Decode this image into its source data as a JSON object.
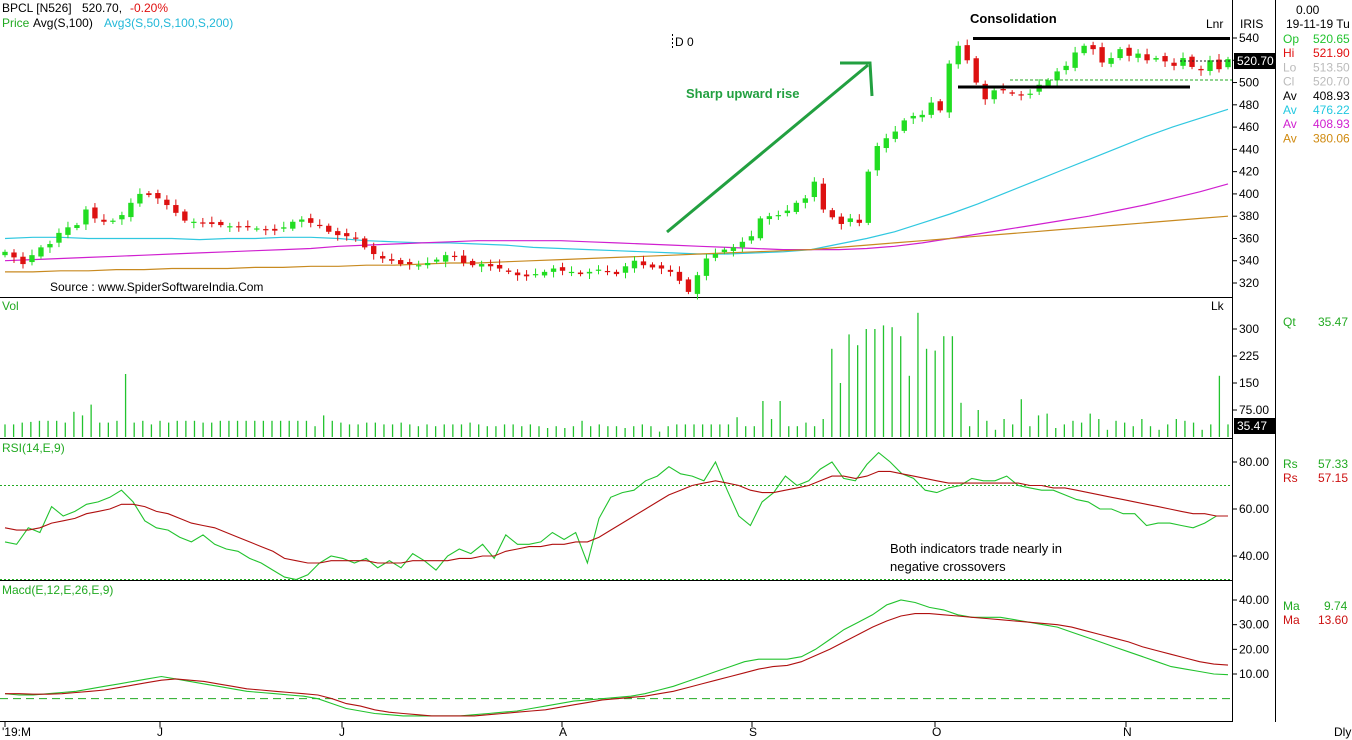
{
  "header": {
    "symbol": "BPCL [N526]",
    "price": "520.70,",
    "change": "-0.20%",
    "price_label": "Price",
    "avg_label": "Avg(S,100)",
    "avg3_label": "Avg3(S,50,S,100,S,200)",
    "d_label": "D 0",
    "lnr": "Lnr",
    "iris": "IRIS",
    "top_value": "0.00",
    "date": "19-11-19 Tu",
    "last_price_tag": "520.70"
  },
  "ohlc_panel": [
    {
      "label": "Op",
      "value": "520.65",
      "color": "#22c32e"
    },
    {
      "label": "Hi",
      "value": "521.90",
      "color": "#e01010"
    },
    {
      "label": "Lo",
      "value": "513.50",
      "color": "#bbbbbb"
    },
    {
      "label": "Cl",
      "value": "520.70",
      "color": "#bbbbbb"
    },
    {
      "label": "Av",
      "value": "408.93",
      "color": "#000000"
    },
    {
      "label": "Av",
      "value": "476.22",
      "color": "#22c8e0"
    },
    {
      "label": "Av",
      "value": "408.93",
      "color": "#d020d0"
    },
    {
      "label": "Av",
      "value": "380.06",
      "color": "#d08a10"
    }
  ],
  "annotations": {
    "source": "Source : www.SpiderSoftwareIndia.Com",
    "sharp_rise": "Sharp upward rise",
    "consolidation": "Consolidation",
    "indicators_note_1": "Both indicators trade nearly in",
    "indicators_note_2": "negative crossovers"
  },
  "volume_panel": {
    "label": "Vol",
    "unit": "Lk",
    "qt_label": "Qt",
    "qt_value": "35.47",
    "last_tag": "35.47"
  },
  "rsi_panel": {
    "label": "RSI(14,E,9)",
    "rs1_label": "Rs",
    "rs1_value": "57.33",
    "rs2_label": "Rs",
    "rs2_value": "57.15"
  },
  "macd_panel": {
    "label": "Macd(E,12,E,26,E,9)",
    "ma1_label": "Ma",
    "ma1_value": "9.74",
    "ma2_label": "Ma",
    "ma2_value": "13.60"
  },
  "x_axis": {
    "period": "Dly"
  },
  "colors": {
    "up": "#22dd22",
    "down": "#dd1111",
    "ma50": "#30c8e0",
    "ma100": "#d020d0",
    "ma200": "#c88a20",
    "rsi": "#22c32e",
    "signal": "#b01010",
    "arrow": "#22a040"
  },
  "chart_data": [
    {
      "type": "candlestick",
      "title": "BPCL [N526]",
      "price_ticks": [
        320,
        340,
        360,
        380,
        400,
        420,
        440,
        460,
        480,
        500,
        520,
        540
      ],
      "ylim": [
        310,
        548
      ],
      "x_labels": [
        "'19:M",
        "J",
        "J",
        "A",
        "S",
        "O",
        "N"
      ],
      "closes": [
        348,
        343,
        337,
        345,
        352,
        355,
        365,
        370,
        372,
        386,
        378,
        375,
        376,
        381,
        392,
        400,
        399,
        396,
        390,
        383,
        376,
        375,
        374,
        373,
        372,
        371,
        370,
        370,
        369,
        368,
        367,
        370,
        375,
        377,
        374,
        372,
        366,
        363,
        362,
        360,
        352,
        346,
        342,
        340,
        337,
        337,
        336,
        338,
        341,
        345,
        344,
        338,
        336,
        337,
        335,
        333,
        330,
        327,
        326,
        328,
        330,
        333,
        331,
        330,
        328,
        330,
        332,
        330,
        328,
        335,
        340,
        336,
        334,
        333,
        330,
        322,
        312,
        327,
        342,
        346,
        350,
        352,
        357,
        362,
        378,
        380,
        381,
        385,
        392,
        396,
        411,
        386,
        379,
        373,
        378,
        374,
        420,
        443,
        450,
        456,
        466,
        470,
        471,
        482,
        475,
        517,
        533,
        520,
        500,
        485,
        493,
        493,
        490,
        489,
        490,
        498,
        502,
        510,
        515,
        527,
        533,
        530,
        518,
        522,
        530,
        524,
        526,
        520,
        522,
        519,
        515,
        522,
        514,
        511,
        520,
        512,
        521
      ],
      "series": [
        {
          "name": "Avg(S,50)",
          "from_index": 0,
          "values": [
            360,
            361,
            361,
            360,
            360,
            360,
            360,
            359,
            360,
            360,
            361,
            361,
            360,
            358,
            357,
            356,
            356,
            355,
            354,
            352,
            351,
            350,
            349,
            348,
            347,
            346,
            346,
            347,
            348,
            350,
            355,
            360,
            366,
            374,
            382,
            391,
            401,
            411,
            421,
            431,
            441,
            451,
            460,
            468,
            476
          ]
        },
        {
          "name": "Avg(S,100)",
          "from_index": 0,
          "values": [
            340,
            341,
            342,
            343,
            344,
            345,
            346,
            347,
            348,
            349,
            350,
            351,
            353,
            354,
            355,
            356,
            357,
            358,
            358,
            358,
            358,
            357,
            356,
            355,
            354,
            353,
            352,
            351,
            350,
            350,
            350,
            351,
            353,
            356,
            360,
            364,
            368,
            372,
            376,
            380,
            385,
            390,
            396,
            402,
            409
          ]
        },
        {
          "name": "Avg(S,200)",
          "from_index": 0,
          "values": [
            330,
            330,
            331,
            331,
            332,
            332,
            333,
            333,
            333,
            334,
            334,
            335,
            335,
            336,
            336,
            337,
            338,
            338,
            339,
            340,
            341,
            342,
            343,
            344,
            345,
            346,
            347,
            348,
            349,
            350,
            352,
            354,
            356,
            358,
            360,
            362,
            364,
            366,
            368,
            370,
            372,
            374,
            376,
            378,
            380
          ]
        }
      ]
    },
    {
      "type": "bar",
      "title": "Vol",
      "ylabel": "Lk",
      "y_ticks": [
        75,
        150,
        225,
        300
      ],
      "values": [
        35,
        35,
        40,
        42,
        45,
        45,
        45,
        40,
        70,
        60,
        90,
        40,
        40,
        45,
        175,
        40,
        45,
        35,
        45,
        40,
        45,
        45,
        45,
        40,
        40,
        45,
        45,
        45,
        45,
        45,
        45,
        45,
        45,
        45,
        45,
        45,
        30,
        60,
        45,
        40,
        35,
        35,
        40,
        40,
        35,
        35,
        40,
        35,
        30,
        35,
        30,
        35,
        35,
        35,
        40,
        35,
        30,
        30,
        35,
        35,
        30,
        35,
        30,
        25,
        30,
        25,
        30,
        45,
        30,
        35,
        30,
        30,
        25,
        30,
        35,
        30,
        15,
        30,
        35,
        35,
        35,
        35,
        35,
        35,
        35,
        55,
        30,
        30,
        100,
        50,
        100,
        30,
        30,
        40,
        30,
        50,
        245,
        150,
        285,
        255,
        300,
        300,
        310,
        305,
        280,
        170,
        345,
        245,
        240,
        280,
        280,
        95,
        30,
        75,
        45,
        20,
        50,
        35,
        105,
        30,
        60,
        65,
        25,
        35,
        45,
        40,
        65,
        50,
        20,
        45,
        40,
        30,
        50,
        30,
        20,
        35,
        50,
        45,
        40,
        20,
        35,
        170,
        35
      ]
    },
    {
      "type": "line",
      "title": "RSI(14,E,9)",
      "y_ticks": [
        40,
        60,
        80
      ],
      "series": [
        {
          "name": "Rs",
          "values": [
            46,
            45,
            52,
            50,
            61,
            57,
            59,
            62,
            63,
            65,
            68,
            63,
            55,
            52,
            51,
            48,
            46,
            49,
            45,
            43,
            42,
            39,
            37,
            34,
            31,
            30,
            32,
            37,
            40,
            39,
            37,
            39,
            35,
            38,
            35,
            41,
            38,
            34,
            40,
            43,
            41,
            45,
            39,
            49,
            45,
            45,
            46,
            50,
            47,
            50,
            37,
            56,
            65,
            67,
            68,
            72,
            74,
            78,
            75,
            74,
            72,
            80,
            68,
            57,
            53,
            63,
            67,
            74,
            70,
            72,
            77,
            80,
            73,
            72,
            79,
            84,
            80,
            75,
            73,
            68,
            67,
            69,
            70,
            73,
            72,
            72,
            74,
            70,
            69,
            68,
            68,
            66,
            64,
            63,
            60,
            60,
            58,
            58,
            53,
            54,
            54,
            53,
            52,
            54,
            57,
            57
          ]
        },
        {
          "name": "Rs",
          "values": [
            52,
            51,
            51,
            52,
            54,
            55,
            56,
            58,
            59,
            60,
            62,
            62,
            61,
            59,
            58,
            56,
            54,
            53,
            52,
            50,
            48,
            46,
            44,
            42,
            39,
            38,
            37,
            37,
            38,
            38,
            38,
            38,
            37,
            37,
            37,
            38,
            38,
            38,
            38,
            39,
            39,
            40,
            40,
            42,
            43,
            44,
            44,
            45,
            45,
            46,
            46,
            48,
            51,
            54,
            57,
            60,
            63,
            66,
            68,
            70,
            71,
            72,
            71,
            70,
            68,
            67,
            67,
            68,
            69,
            70,
            72,
            74,
            74,
            73,
            74,
            76,
            76,
            75,
            74,
            73,
            72,
            71,
            71,
            71,
            71,
            71,
            71,
            71,
            70,
            70,
            69,
            69,
            68,
            67,
            66,
            65,
            64,
            63,
            62,
            61,
            60,
            59,
            58,
            58,
            57,
            57
          ]
        }
      ]
    },
    {
      "type": "line",
      "title": "Macd(E,12,E,26,E,9)",
      "y_ticks": [
        10,
        20,
        30,
        40
      ],
      "series": [
        {
          "name": "Ma",
          "values": [
            2,
            1.5,
            1.5,
            2,
            2.5,
            3,
            4,
            5,
            6,
            7,
            8,
            9,
            8,
            7,
            6,
            5,
            4,
            3,
            2.5,
            2,
            1.5,
            1,
            0,
            -2,
            -4,
            -5,
            -6,
            -6.5,
            -7,
            -7,
            -7,
            -7,
            -7,
            -6.5,
            -6,
            -5.5,
            -5,
            -4,
            -3,
            -2,
            -1,
            -0.5,
            0,
            0.5,
            1,
            2,
            3.5,
            5,
            7,
            9,
            11,
            13,
            15,
            16,
            16,
            16,
            17,
            20,
            24,
            28,
            31,
            34,
            38,
            40,
            39,
            37,
            36,
            34,
            33,
            33,
            33,
            32,
            31,
            30,
            29,
            27,
            25,
            23,
            21,
            19,
            17,
            15,
            13,
            12,
            11,
            10,
            9.7
          ]
        },
        {
          "name": "Ma",
          "values": [
            2,
            2,
            1.8,
            1.8,
            2,
            2.5,
            3,
            3.5,
            4.5,
            5.5,
            6.5,
            7.5,
            8,
            7.5,
            7,
            6,
            5,
            4,
            3.5,
            3,
            2.5,
            2,
            1.5,
            0,
            -2,
            -3,
            -4.5,
            -5.5,
            -6,
            -6.5,
            -7,
            -7,
            -7,
            -7,
            -6.5,
            -6,
            -5.5,
            -5,
            -4.5,
            -3.5,
            -2.5,
            -1.5,
            -0.5,
            0,
            0.5,
            1,
            2,
            3,
            4.5,
            6,
            7.5,
            9,
            10.5,
            12,
            13,
            13.5,
            15,
            17.5,
            20,
            23,
            26,
            29,
            31.5,
            33.5,
            34.5,
            34.5,
            34,
            33.5,
            33,
            32.5,
            32,
            31.5,
            31,
            30.5,
            30,
            29,
            27.5,
            26,
            24.5,
            23,
            21,
            19.5,
            18,
            16.5,
            15,
            14,
            13.6
          ]
        }
      ]
    }
  ]
}
